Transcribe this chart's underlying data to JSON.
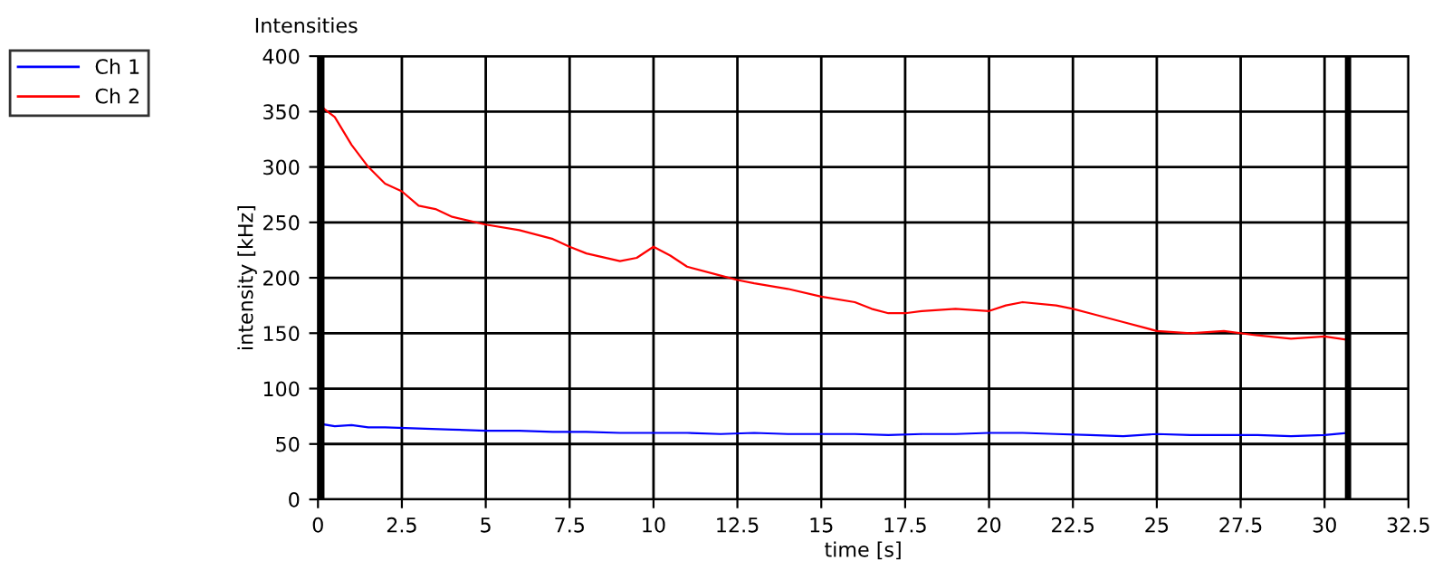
{
  "chart_data": {
    "type": "line",
    "title": "Intensities",
    "xlabel": "time [s]",
    "ylabel": "intensity [kHz]",
    "series": [
      {
        "name": "Ch 1",
        "color": "#0000ff",
        "x": [
          0.1,
          0.5,
          1,
          1.5,
          2,
          3,
          4,
          5,
          6,
          7,
          8,
          9,
          10,
          11,
          12,
          13,
          14,
          15,
          16,
          17,
          18,
          19,
          20,
          21,
          22,
          23,
          24,
          25,
          26,
          27,
          28,
          29,
          30,
          30.7
        ],
        "values": [
          68,
          66,
          67,
          65,
          65,
          64,
          63,
          62,
          62,
          61,
          61,
          60,
          60,
          60,
          59,
          60,
          59,
          59,
          59,
          58,
          59,
          59,
          60,
          60,
          59,
          58,
          57,
          59,
          58,
          58,
          58,
          57,
          58,
          60
        ]
      },
      {
        "name": "Ch 2",
        "color": "#ff0000",
        "x": [
          0.1,
          0.2,
          0.5,
          1,
          1.5,
          2,
          2.5,
          3,
          3.5,
          4,
          5,
          6,
          7,
          7.5,
          8,
          9,
          9.5,
          10,
          10.5,
          11,
          12,
          12.5,
          13,
          14,
          15,
          16,
          16.5,
          17,
          17.5,
          18,
          19,
          20,
          20.5,
          21,
          22,
          22.5,
          23,
          24,
          25,
          26,
          27,
          28,
          29,
          30,
          30.7
        ],
        "values": [
          355,
          352,
          345,
          320,
          300,
          285,
          278,
          265,
          262,
          255,
          248,
          243,
          235,
          228,
          222,
          215,
          218,
          228,
          220,
          210,
          202,
          198,
          195,
          190,
          183,
          178,
          172,
          168,
          168,
          170,
          172,
          170,
          175,
          178,
          175,
          172,
          168,
          160,
          152,
          150,
          152,
          148,
          145,
          147,
          144
        ]
      }
    ],
    "xlim": [
      0,
      32.5
    ],
    "xticks": [
      0,
      2.5,
      5,
      7.5,
      10,
      12.5,
      15,
      17.5,
      20,
      22.5,
      25,
      27.5,
      30,
      32.5
    ],
    "ylim": [
      0,
      400
    ],
    "yticks": [
      0,
      50,
      100,
      150,
      200,
      250,
      300,
      350,
      400
    ],
    "ref_lines": [
      {
        "axis": "x",
        "value": 0.1,
        "color": "#000000"
      },
      {
        "axis": "x",
        "value": 30.7,
        "color": "#000000"
      }
    ],
    "grid": true,
    "legend": "top left"
  }
}
